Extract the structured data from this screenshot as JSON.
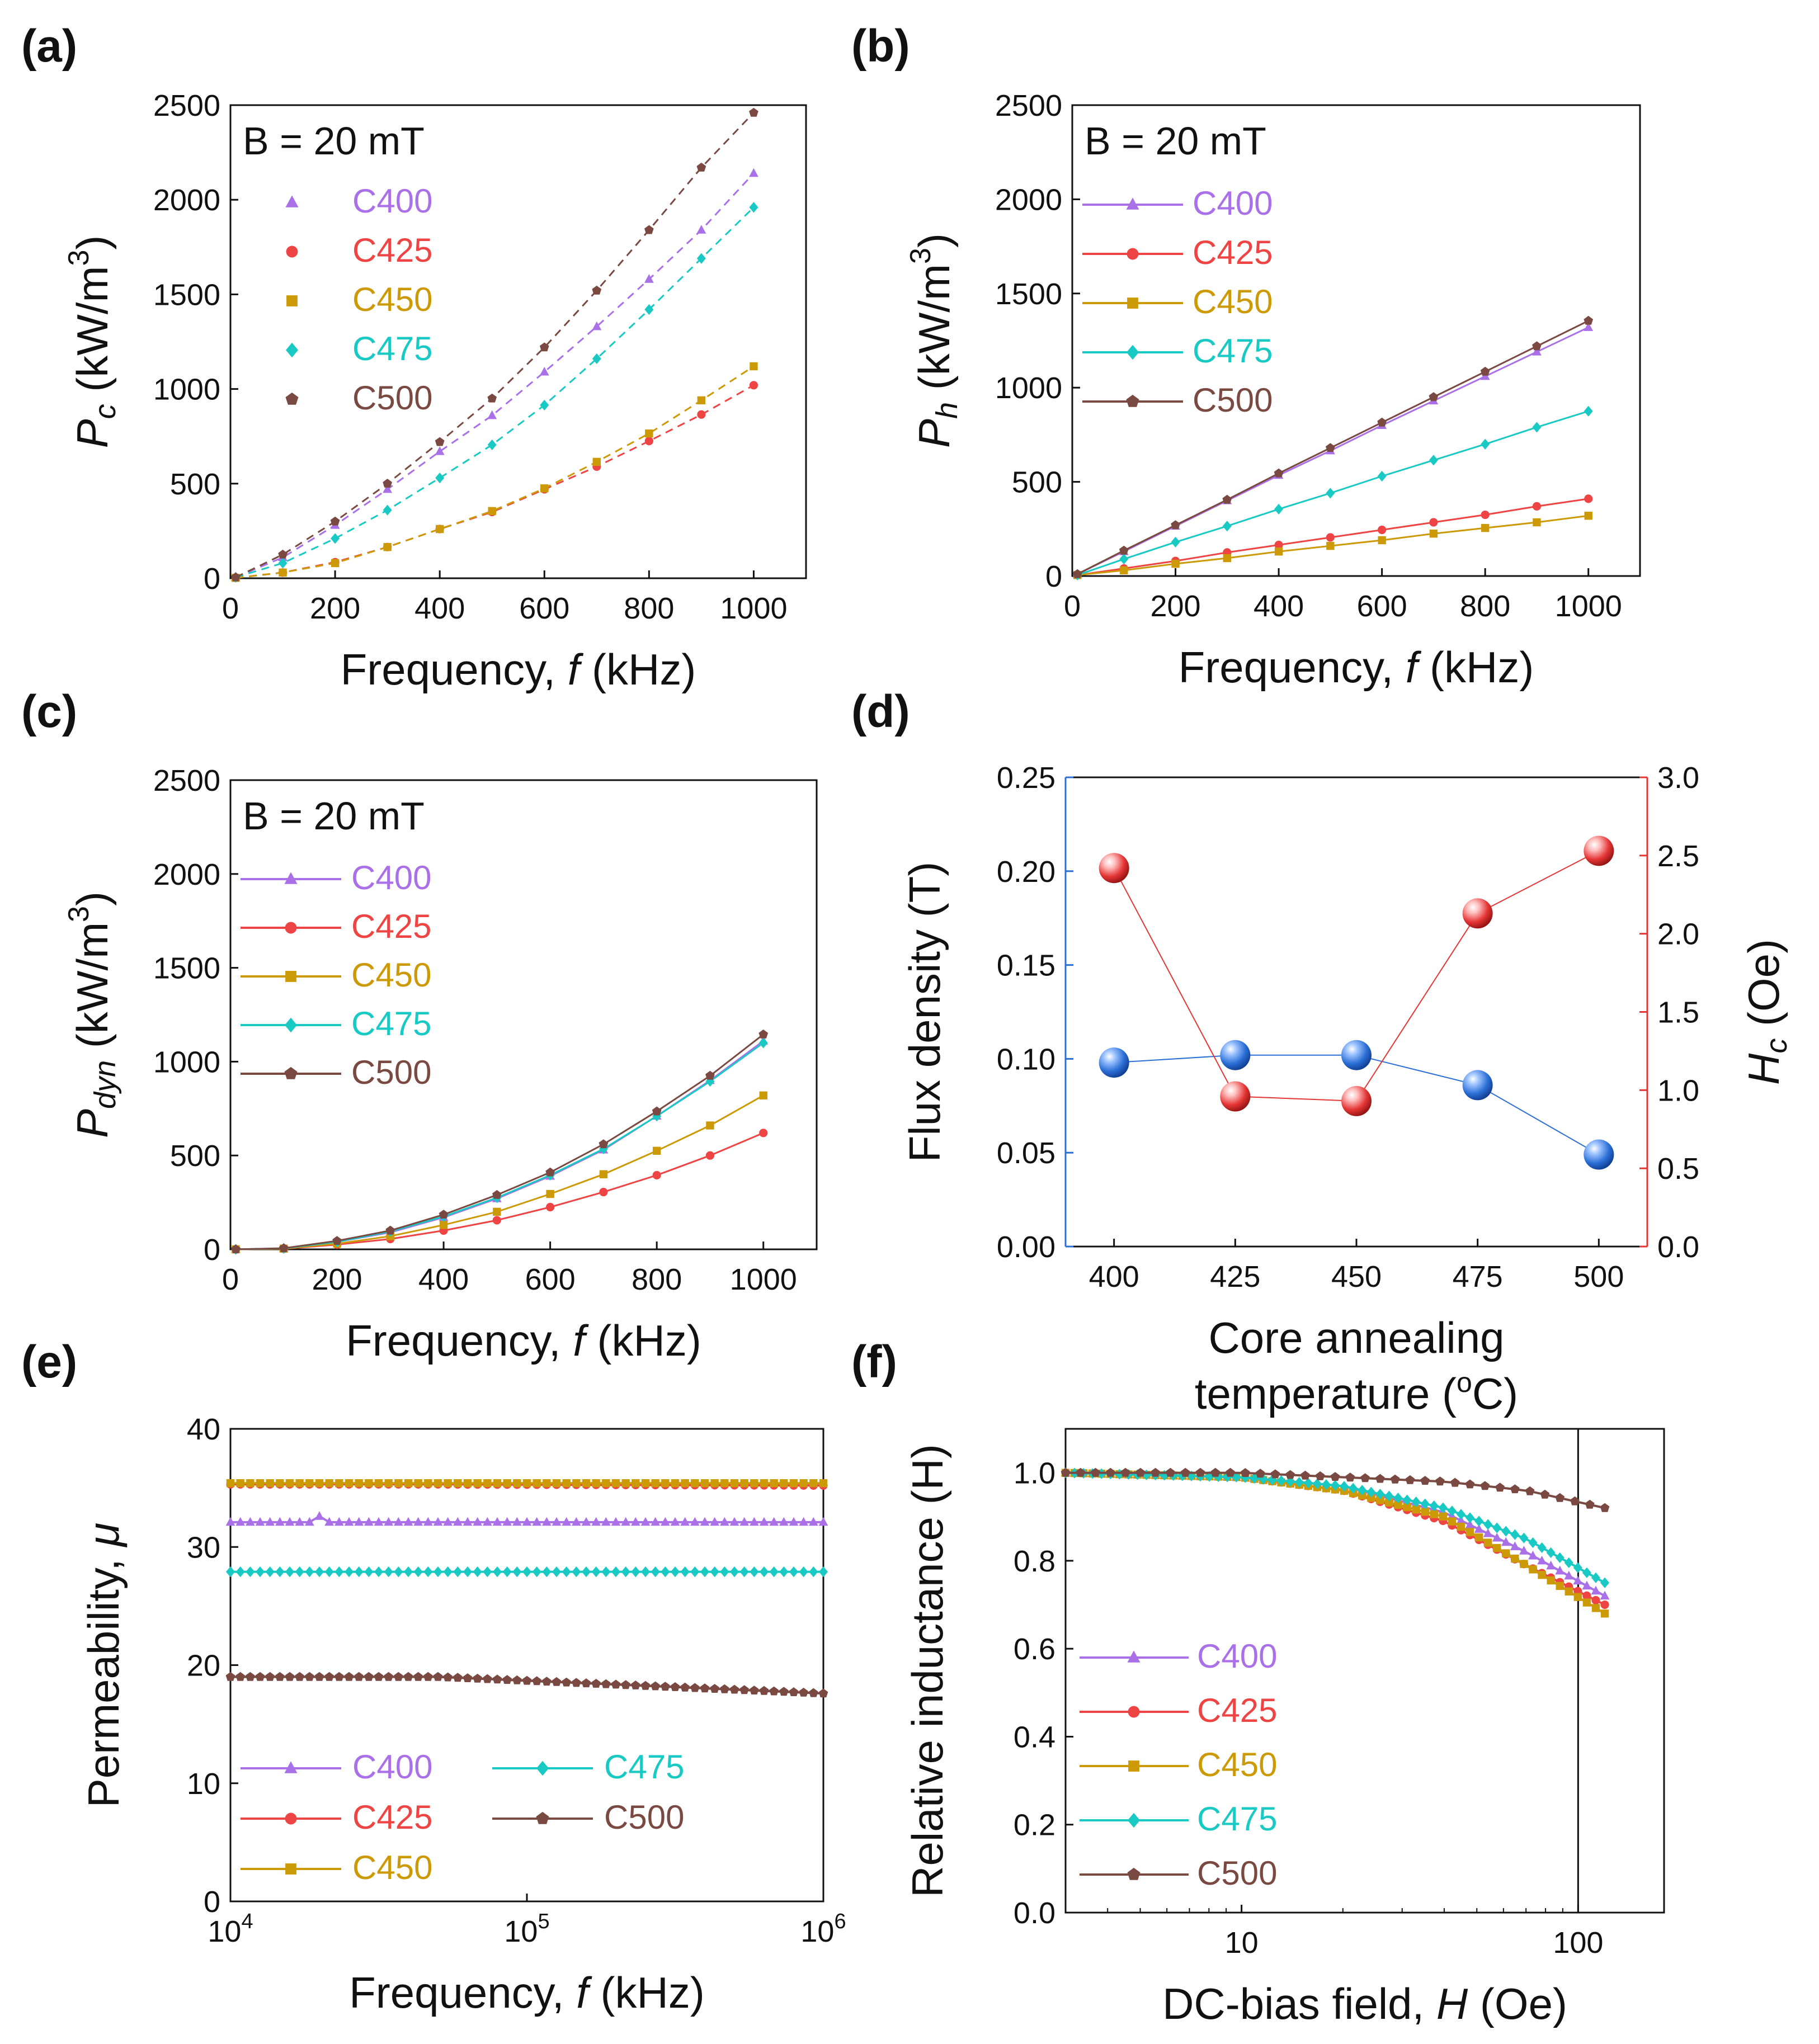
{
  "figure": {
    "colors": {
      "C400": "#a970e8",
      "C425": "#ef4444",
      "C450": "#cc9a06",
      "C475": "#19c9c4",
      "C500": "#7a4a42",
      "flux": "#2b6fd6",
      "hc": "#e53535"
    },
    "markers": {
      "C400": "triangle",
      "C425": "circle",
      "C450": "square",
      "C475": "diamond",
      "C500": "pentagon"
    }
  },
  "chart_data": [
    {
      "id": "a",
      "panel_label": "(a)",
      "type": "scatter",
      "annotation": "B = 20 mT",
      "xlabel_text": "Frequency, ",
      "xlabel_var": "f",
      "xlabel_unit": " (kHz)",
      "ylabel_sym": "P",
      "ylabel_sub": "c",
      "ylabel_unit": " (kW/m",
      "ylabel_sup": "3",
      "ylabel_close": ")",
      "xlim": [
        0,
        1100
      ],
      "ylim": [
        0,
        2500
      ],
      "xticks": [
        0,
        200,
        400,
        600,
        800,
        1000
      ],
      "yticks": [
        0,
        500,
        1000,
        1500,
        2000,
        2500
      ],
      "legend_style": "marker",
      "legend_position": "top-left",
      "x": [
        10,
        100,
        200,
        300,
        400,
        500,
        600,
        700,
        800,
        900,
        1000
      ],
      "series": [
        {
          "name": "C400",
          "values": [
            5,
            110,
            280,
            470,
            670,
            860,
            1090,
            1330,
            1580,
            1840,
            2140
          ]
        },
        {
          "name": "C425",
          "values": [
            2,
            30,
            85,
            165,
            260,
            350,
            470,
            590,
            725,
            865,
            1020
          ]
        },
        {
          "name": "C450",
          "values": [
            2,
            30,
            80,
            165,
            260,
            355,
            475,
            615,
            765,
            940,
            1120
          ]
        },
        {
          "name": "C475",
          "values": [
            5,
            80,
            210,
            360,
            530,
            705,
            915,
            1160,
            1420,
            1690,
            1960
          ]
        },
        {
          "name": "C500",
          "values": [
            5,
            125,
            300,
            500,
            720,
            950,
            1220,
            1520,
            1840,
            2170,
            2460
          ]
        }
      ]
    },
    {
      "id": "b",
      "panel_label": "(b)",
      "type": "line",
      "annotation": "B = 20 mT",
      "xlabel_text": "Frequency, ",
      "xlabel_var": "f",
      "xlabel_unit": " (kHz)",
      "ylabel_sym": "P",
      "ylabel_sub": "h",
      "ylabel_unit": " (kW/m",
      "ylabel_sup": "3",
      "ylabel_close": ")",
      "xlim": [
        0,
        1100
      ],
      "ylim": [
        0,
        2500
      ],
      "xticks": [
        0,
        200,
        400,
        600,
        800,
        1000
      ],
      "yticks": [
        0,
        500,
        1000,
        1500,
        2000,
        2500
      ],
      "legend_style": "line",
      "legend_position": "top-left",
      "x": [
        10,
        100,
        200,
        300,
        400,
        500,
        600,
        700,
        800,
        900,
        1000
      ],
      "series": [
        {
          "name": "C400",
          "values": [
            10,
            130,
            265,
            400,
            535,
            665,
            800,
            930,
            1060,
            1190,
            1320
          ]
        },
        {
          "name": "C425",
          "values": [
            5,
            40,
            80,
            125,
            165,
            205,
            245,
            285,
            325,
            370,
            410
          ]
        },
        {
          "name": "C450",
          "values": [
            5,
            30,
            65,
            95,
            130,
            160,
            190,
            225,
            255,
            285,
            320
          ]
        },
        {
          "name": "C475",
          "values": [
            5,
            90,
            180,
            265,
            355,
            440,
            530,
            615,
            700,
            790,
            875
          ]
        },
        {
          "name": "C500",
          "values": [
            10,
            135,
            270,
            405,
            545,
            680,
            815,
            950,
            1085,
            1220,
            1355
          ]
        }
      ]
    },
    {
      "id": "c",
      "panel_label": "(c)",
      "type": "line",
      "annotation": "B = 20 mT",
      "xlabel_text": "Frequency, ",
      "xlabel_var": "f",
      "xlabel_unit": " (kHz)",
      "ylabel_sym": "P",
      "ylabel_sub": "dyn",
      "ylabel_unit": " (kW/m",
      "ylabel_sup": "3",
      "ylabel_close": ")",
      "xlim": [
        0,
        1100
      ],
      "ylim": [
        0,
        2500
      ],
      "xticks": [
        0,
        200,
        400,
        600,
        800,
        1000
      ],
      "yticks": [
        0,
        500,
        1000,
        1500,
        2000,
        2500
      ],
      "legend_style": "line",
      "legend_position": "top-left",
      "x": [
        10,
        100,
        200,
        300,
        400,
        500,
        600,
        700,
        800,
        900,
        1000
      ],
      "series": [
        {
          "name": "C400",
          "values": [
            0,
            5,
            40,
            90,
            170,
            270,
            390,
            530,
            710,
            900,
            1110
          ]
        },
        {
          "name": "C425",
          "values": [
            0,
            3,
            25,
            55,
            100,
            155,
            225,
            305,
            395,
            500,
            620
          ]
        },
        {
          "name": "C450",
          "values": [
            0,
            4,
            30,
            70,
            130,
            200,
            295,
            400,
            525,
            660,
            820
          ]
        },
        {
          "name": "C475",
          "values": [
            0,
            5,
            40,
            95,
            175,
            275,
            395,
            535,
            710,
            895,
            1100
          ]
        },
        {
          "name": "C500",
          "values": [
            0,
            6,
            45,
            100,
            185,
            290,
            410,
            560,
            735,
            925,
            1145
          ]
        }
      ]
    },
    {
      "id": "d",
      "panel_label": "(d)",
      "type": "line",
      "xlabel_line1": "Core annealing",
      "xlabel_line2a": "temperature (",
      "xlabel_sup": "o",
      "xlabel_line2b": "C)",
      "ylabel_left": "Flux density (T)",
      "ylabel_right_sym": "H",
      "ylabel_right_sub": "c",
      "ylabel_right_unit": " (Oe)",
      "xlim": [
        390,
        510
      ],
      "ylim": [
        0,
        0.25
      ],
      "ylim_right": [
        0,
        3.0
      ],
      "xticks": [
        400,
        425,
        450,
        475,
        500
      ],
      "yticks": [
        "0.00",
        "0.05",
        "0.10",
        "0.15",
        "0.20",
        "0.25"
      ],
      "yticks_right": [
        "0.0",
        "0.5",
        "1.0",
        "1.5",
        "2.0",
        "2.5",
        "3.0"
      ],
      "x": [
        400,
        425,
        450,
        475,
        500
      ],
      "series": [
        {
          "name": "Flux density",
          "axis": "left",
          "values": [
            0.098,
            0.102,
            0.102,
            0.086,
            0.049
          ]
        },
        {
          "name": "Hc",
          "axis": "right",
          "values": [
            2.42,
            0.96,
            0.93,
            2.13,
            2.53
          ]
        }
      ]
    },
    {
      "id": "e",
      "panel_label": "(e)",
      "type": "line",
      "xlabel_text": "Frequency, ",
      "xlabel_var": "f",
      "xlabel_unit": " (kHz)",
      "ylabel_text": "Permeability, ",
      "ylabel_var": "μ",
      "xscale": "log",
      "xlim": [
        10000,
        1000000
      ],
      "ylim": [
        0,
        40
      ],
      "xticks": [
        {
          "base": "10",
          "exp": "4"
        },
        {
          "base": "10",
          "exp": "5"
        },
        {
          "base": "10",
          "exp": "6"
        }
      ],
      "yticks": [
        0,
        10,
        20,
        30,
        40
      ],
      "legend_style": "line",
      "legend_position": "bottom-left, two columns",
      "series": [
        {
          "name": "C400",
          "value": 32.1,
          "bump_at": 20000,
          "bump_value": 32.6
        },
        {
          "name": "C425",
          "value": 35.3,
          "end_value": 35.2
        },
        {
          "name": "C450",
          "value": 35.4,
          "end_value": 35.4
        },
        {
          "name": "C475",
          "value": 27.9,
          "end_value": 27.9
        },
        {
          "name": "C500",
          "value": 19.0,
          "end_value": 17.6
        }
      ]
    },
    {
      "id": "f",
      "panel_label": "(f)",
      "type": "line",
      "xlabel_text": "DC-bias field, ",
      "xlabel_var": "H",
      "xlabel_unit": " (Oe)",
      "ylabel_text": "Relative inductance (H)",
      "xscale": "log",
      "xlim": [
        3,
        180
      ],
      "ylim": [
        0,
        1.1
      ],
      "xticks": [
        {
          "label": "10",
          "value": 10
        },
        {
          "label": "100",
          "value": 100
        }
      ],
      "yticks": [
        "0.0",
        "0.2",
        "0.4",
        "0.6",
        "0.8",
        "1.0"
      ],
      "reference_line_x": 100,
      "legend_style": "line",
      "legend_position": "bottom-left",
      "series": [
        {
          "name": "C400",
          "curve": [
            [
              3,
              1.0
            ],
            [
              10,
              0.99
            ],
            [
              20,
              0.97
            ],
            [
              40,
              0.91
            ],
            [
              70,
              0.82
            ],
            [
              120,
              0.72
            ]
          ]
        },
        {
          "name": "C425",
          "curve": [
            [
              3,
              1.0
            ],
            [
              10,
              0.99
            ],
            [
              20,
              0.96
            ],
            [
              40,
              0.89
            ],
            [
              70,
              0.79
            ],
            [
              120,
              0.7
            ]
          ]
        },
        {
          "name": "C450",
          "curve": [
            [
              3,
              1.0
            ],
            [
              10,
              0.99
            ],
            [
              20,
              0.96
            ],
            [
              40,
              0.9
            ],
            [
              70,
              0.79
            ],
            [
              120,
              0.68
            ]
          ]
        },
        {
          "name": "C475",
          "curve": [
            [
              3,
              1.0
            ],
            [
              10,
              0.99
            ],
            [
              20,
              0.97
            ],
            [
              40,
              0.92
            ],
            [
              70,
              0.85
            ],
            [
              120,
              0.75
            ]
          ]
        },
        {
          "name": "C500",
          "curve": [
            [
              3,
              1.0
            ],
            [
              10,
              1.0
            ],
            [
              20,
              0.99
            ],
            [
              40,
              0.98
            ],
            [
              70,
              0.96
            ],
            [
              120,
              0.92
            ]
          ]
        }
      ]
    }
  ]
}
